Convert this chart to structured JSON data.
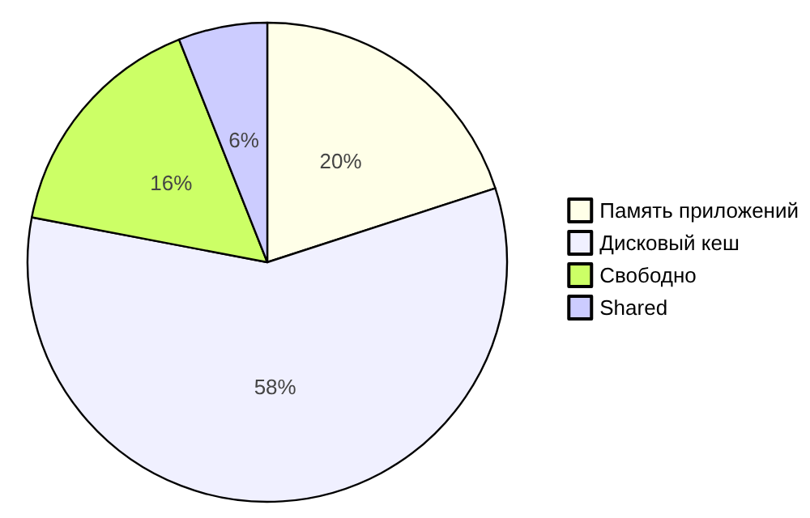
{
  "chart_data": {
    "type": "pie",
    "categories": [
      "Память приложений",
      "Дисковый кеш",
      "Свободно",
      "Shared"
    ],
    "values": [
      20,
      58,
      16,
      6
    ],
    "colors": [
      "#ffffe8",
      "#f0f0ff",
      "#ccff66",
      "#ccccff"
    ],
    "value_labels": [
      "20%",
      "58%",
      "16%",
      "6%"
    ],
    "legend": "right"
  }
}
